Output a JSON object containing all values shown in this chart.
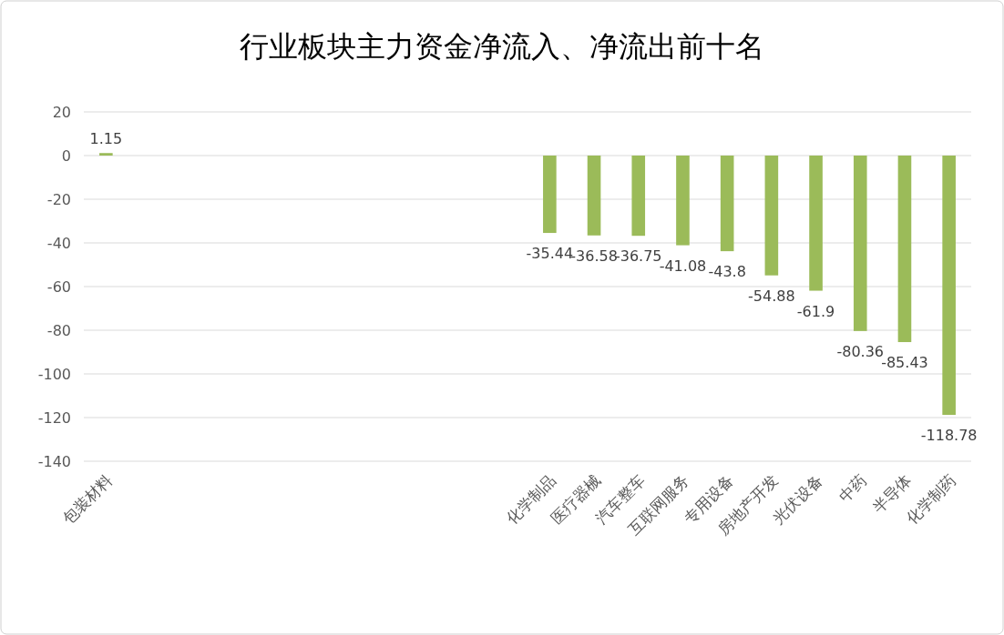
{
  "chart_data": {
    "type": "bar",
    "title": "行业板块主力资金净流入、净流出前十名",
    "categories": [
      "包装材料",
      null,
      null,
      null,
      null,
      null,
      null,
      null,
      null,
      null,
      "化学制品",
      "医疗器械",
      "汽车整车",
      "互联网服务",
      "专用设备",
      "房地产开发",
      "光伏设备",
      "中药",
      "半导体",
      "化学制药"
    ],
    "values": [
      1.15,
      null,
      null,
      null,
      null,
      null,
      null,
      null,
      null,
      null,
      -35.44,
      -36.58,
      -36.75,
      -41.08,
      -43.8,
      -54.88,
      -61.9,
      -80.36,
      -85.43,
      -118.78
    ],
    "color": "#9bbb59",
    "ylim": [
      -140,
      20
    ],
    "yticks": [
      -140,
      -120,
      -100,
      -80,
      -60,
      -40,
      -20,
      0,
      20
    ],
    "grid": "y",
    "data_labels": true
  }
}
